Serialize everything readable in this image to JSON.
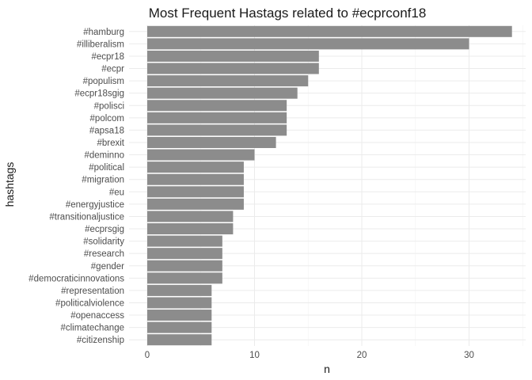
{
  "chart_data": {
    "type": "bar",
    "orientation": "horizontal",
    "title": "Most Frequent Hastags related to #ecprconf18",
    "xlabel": "n",
    "ylabel": "hashtags",
    "xlim": [
      0,
      35
    ],
    "x_ticks": [
      0,
      10,
      20,
      30
    ],
    "grid": true,
    "bar_color": "#8c8c8c",
    "categories": [
      "#hamburg",
      "#illiberalism",
      "#ecpr18",
      "#ecpr",
      "#populism",
      "#ecpr18sgig",
      "#polisci",
      "#polcom",
      "#apsa18",
      "#brexit",
      "#deminno",
      "#political",
      "#migration",
      "#eu",
      "#energyjustice",
      "#transitionaljustice",
      "#ecprsgig",
      "#solidarity",
      "#research",
      "#gender",
      "#democraticinnovations",
      "#representation",
      "#politicalviolence",
      "#openaccess",
      "#climatechange",
      "#citizenship"
    ],
    "values": [
      34,
      30,
      16,
      16,
      15,
      14,
      13,
      13,
      13,
      12,
      10,
      9,
      9,
      9,
      9,
      8,
      8,
      7,
      7,
      7,
      7,
      6,
      6,
      6,
      6,
      6
    ]
  }
}
